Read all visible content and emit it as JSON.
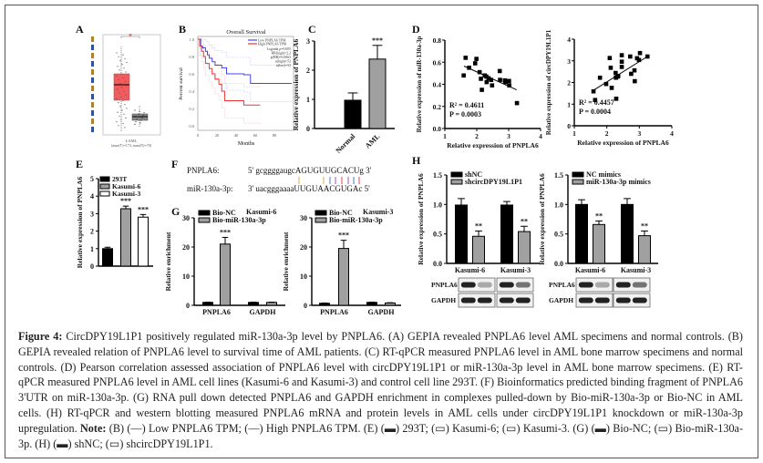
{
  "figure": {
    "panel_labels": [
      "A",
      "B",
      "C",
      "D",
      "E",
      "F",
      "G",
      "H"
    ],
    "caption": {
      "figure_label": "Figure 4:",
      "text": "CircDPY19L1P1 positively regulated miR-130a-3p level by PNPLA6. (A) GEPIA revealed PNPLA6 level AML specimens and normal controls. (B) GEPIA revealed relation of PNPLA6 level to survival time of AML patients. (C) RT-qPCR measured PNPLA6 level in AML bone marrow specimens and normal controls. (D) Pearson correlation assessed association of PNPLA6 level with circDPY19L1P1 or miR-130a-3p level in AML bone marrow specimens. (E) RT-qPCR measured PNPLA6 level in AML cell lines (Kasumi-6 and Kasumi-3) and control cell line 293T. (F) Bioinformatics predicted binding fragment of PNPLA6 3'UTR on miR-130a-3p. (G) RNA pull down detected PNPLA6 and GAPDH enrichment in complexes pulled-down by Bio-miR-130a-3p or Bio-NC in AML cells. (H) RT-qPCR and western blotting measured PNPLA6 mRNA and protein levels in AML cells under circDPY19L1P1 knockdown or miR-130a-3p upregulation.",
      "note_label": "Note:",
      "note_text": "(B) (—) Low PNPLA6 TPM; (—) High PNPLA6 TPM. (E) (▬) 293T; (▭) Kasumi-6; (▭) Kasumi-3. (G) (▬) Bio-NC; (▭) Bio-miR-130a-3p. (H) (▬) shNC; (▭) shcircDPY19L1P1."
    }
  },
  "chart_data": [
    {
      "panel": "A",
      "type": "box",
      "categories": [
        "T",
        "N"
      ],
      "xlabel": "LAML",
      "sublabel": "(num(T)=173; num(N)=70)",
      "colors": {
        "T": "#f25c5c",
        "N": "#888888"
      },
      "significance": "*"
    },
    {
      "panel": "B",
      "type": "line",
      "title": "Overall Survival",
      "xlabel": "Months",
      "ylabel": "Percent survival",
      "xlim": [
        0,
        100
      ],
      "ylim": [
        0,
        1
      ],
      "xticks": [
        0,
        20,
        40,
        60,
        80
      ],
      "yticks": [
        "0.0",
        "0.2",
        "0.4",
        "0.6",
        "0.8",
        "1.0"
      ],
      "legend": [
        "Low PNPLA6 TPM",
        "High PNPLA6 TPM"
      ],
      "stats": [
        "Logrank p=0.005",
        "HR(high)=2.2",
        "p(HR)=0.0063",
        "n(high)=53",
        "n(low)=53"
      ],
      "series": [
        {
          "name": "Low PNPLA6 TPM",
          "color": "#4444ee",
          "x": [
            0,
            3,
            5,
            8,
            10,
            12,
            15,
            18,
            25,
            30,
            48,
            55,
            98
          ],
          "y": [
            1.0,
            0.92,
            0.9,
            0.86,
            0.82,
            0.78,
            0.74,
            0.7,
            0.67,
            0.6,
            0.59,
            0.49,
            0.49
          ]
        },
        {
          "name": "High PNPLA6 TPM",
          "color": "#ee3333",
          "x": [
            0,
            2,
            4,
            6,
            8,
            12,
            15,
            18,
            22,
            25,
            28,
            48,
            65
          ],
          "y": [
            1.0,
            0.92,
            0.86,
            0.8,
            0.72,
            0.66,
            0.6,
            0.54,
            0.48,
            0.4,
            0.29,
            0.24,
            0.24
          ]
        }
      ]
    },
    {
      "panel": "C",
      "type": "bar",
      "ylabel": "Relative expression of PNPLA6",
      "ylim": [
        0,
        3
      ],
      "yticks": [
        0,
        1,
        2,
        3
      ],
      "categories": [
        "Normal",
        "AML"
      ],
      "values": [
        0.97,
        2.38
      ],
      "errors": [
        0.25,
        0.47
      ],
      "colors": [
        "#000000",
        "#a0a0a0"
      ],
      "significance": [
        "",
        "***"
      ]
    },
    {
      "panel": "D",
      "type": "scatter",
      "xlabel": "Relative expression of PNPLA6",
      "ylabel": "Relative expression of miR-130a-3p",
      "xlim": [
        1,
        4
      ],
      "ylim": [
        0,
        0.8
      ],
      "xticks": [
        1,
        2,
        3,
        4
      ],
      "yticks": [
        "0.0",
        "0.2",
        "0.4",
        "0.6",
        "0.8"
      ],
      "r2": "R² = 0.4611",
      "p": "P = 0.0003",
      "fit": [
        [
          1.6,
          0.565
        ],
        [
          3.25,
          0.35
        ]
      ],
      "x": [
        1.59,
        1.65,
        1.76,
        1.95,
        1.99,
        2.09,
        2.13,
        2.16,
        2.25,
        2.3,
        2.31,
        2.37,
        2.45,
        2.48,
        2.72,
        2.73,
        2.88,
        2.9,
        3.01,
        3.02,
        3.26
      ],
      "y": [
        0.48,
        0.64,
        0.55,
        0.59,
        0.63,
        0.51,
        0.45,
        0.35,
        0.48,
        0.47,
        0.42,
        0.455,
        0.44,
        0.39,
        0.52,
        0.44,
        0.435,
        0.42,
        0.43,
        0.39,
        0.23
      ]
    },
    {
      "panel": "D",
      "type": "scatter",
      "xlabel": "Relative expression of PNPLA6",
      "ylabel": "Relative expression of circDPY19L1P1",
      "xlim": [
        1,
        4
      ],
      "ylim": [
        0,
        4
      ],
      "xticks": [
        1,
        2,
        3,
        4
      ],
      "yticks": [
        "0",
        "1",
        "2",
        "3",
        "4"
      ],
      "r2": "R² = 0.4457",
      "p": "P = 0.0004",
      "fit": [
        [
          1.6,
          1.65
        ],
        [
          3.25,
          3.2
        ]
      ],
      "x": [
        1.59,
        1.64,
        1.79,
        1.98,
        2.09,
        2.12,
        2.15,
        2.27,
        2.28,
        2.29,
        2.33,
        2.35,
        2.46,
        2.46,
        2.46,
        2.72,
        2.75,
        2.85,
        2.86,
        2.93,
        2.99,
        3.02,
        3.25
      ],
      "y": [
        1.59,
        1.19,
        2.22,
        1.93,
        3.13,
        2.68,
        1.75,
        2.44,
        2.22,
        1.25,
        2.27,
        2.3,
        3.26,
        2.96,
        2.72,
        3.2,
        2.4,
        2.56,
        2.06,
        3.12,
        3.04,
        3.36,
        3.2
      ]
    },
    {
      "panel": "E",
      "type": "bar",
      "ylabel": "Relative expression of PNPLA6",
      "ylim": [
        0,
        5
      ],
      "yticks": [
        0,
        1,
        2,
        3,
        4,
        5
      ],
      "categories": [
        "293T",
        "Kasumi-6",
        "Kasumi-3"
      ],
      "values": [
        1.0,
        3.28,
        2.8
      ],
      "errors": [
        0.08,
        0.15,
        0.15
      ],
      "colors": [
        "#000000",
        "#a0a0a0",
        "#ffffff"
      ],
      "significance": [
        "",
        "***",
        "***"
      ],
      "legend": [
        "293T",
        "Kasumi-6",
        "Kasumi-3"
      ]
    },
    {
      "panel": "G",
      "type": "bar",
      "title": "Kasumi-6",
      "ylabel": "Relative enrichment",
      "ylim": [
        0,
        30
      ],
      "yticks": [
        0,
        10,
        20,
        30
      ],
      "categories": [
        "PNPLA6",
        "GAPDH"
      ],
      "series": [
        {
          "name": "Bio-NC",
          "color": "#000000",
          "values": [
            1.0,
            1.0
          ],
          "errors": [
            0.1,
            0.1
          ]
        },
        {
          "name": "Bio-miR-130a-3p",
          "color": "#a0a0a0",
          "values": [
            21.0,
            1.0
          ],
          "errors": [
            2.3,
            0.1
          ]
        }
      ],
      "significance": [
        "***",
        ""
      ]
    },
    {
      "panel": "G",
      "type": "bar",
      "title": "Kasumi-3",
      "ylabel": "Relative enrichment",
      "ylim": [
        0,
        30
      ],
      "yticks": [
        0,
        10,
        20,
        30
      ],
      "categories": [
        "PNPLA6",
        "GAPDH"
      ],
      "series": [
        {
          "name": "Bio-NC",
          "color": "#000000",
          "values": [
            0.7,
            1.0
          ],
          "errors": [
            0.1,
            0.1
          ]
        },
        {
          "name": "Bio-miR-130a-3p",
          "color": "#a0a0a0",
          "values": [
            19.5,
            0.8
          ],
          "errors": [
            2.8,
            0.1
          ]
        }
      ],
      "significance": [
        "***",
        ""
      ]
    },
    {
      "panel": "H",
      "type": "bar",
      "ylabel": "Relative expression of PNPLA6",
      "ylim": [
        0,
        1.5
      ],
      "yticks": [
        "0.0",
        "0.5",
        "1.0",
        "1.5"
      ],
      "categories": [
        "Kasumi-6",
        "Kasumi-3"
      ],
      "series": [
        {
          "name": "shNC",
          "color": "#000000",
          "values": [
            0.99,
            0.99
          ],
          "errors": [
            0.11,
            0.06
          ]
        },
        {
          "name": "shcircDPY19L1P1",
          "color": "#a0a0a0",
          "values": [
            0.46,
            0.54
          ],
          "errors": [
            0.09,
            0.09
          ]
        }
      ],
      "significance": [
        "**",
        "**"
      ],
      "blot_rows": [
        "PNPLA6",
        "GAPDH"
      ]
    },
    {
      "panel": "H",
      "type": "bar",
      "ylabel": "Relative expression of PNPLA6",
      "ylim": [
        0,
        1.5
      ],
      "yticks": [
        "0.0",
        "0.5",
        "1.0",
        "1.5"
      ],
      "categories": [
        "Kasumi-6",
        "Kasumi-3"
      ],
      "series": [
        {
          "name": "NC mimics",
          "color": "#000000",
          "values": [
            1.0,
            1.0
          ],
          "errors": [
            0.08,
            0.1
          ]
        },
        {
          "name": "miR-130a-3p mimics",
          "color": "#a0a0a0",
          "values": [
            0.66,
            0.47
          ],
          "errors": [
            0.06,
            0.08
          ]
        }
      ],
      "significance": [
        "**",
        "**"
      ],
      "blot_rows": [
        "PNPLA6",
        "GAPDH"
      ]
    }
  ],
  "sequence_panel": {
    "target_label": "PNPLA6:",
    "target_seq": "5' gcggggaugcAGUGUUGCACUg 3'",
    "mirna_label": "miR-130a-3p:",
    "mirna_seq": "3' uacgggaaaaUUGUAACGUGAc 5'"
  }
}
